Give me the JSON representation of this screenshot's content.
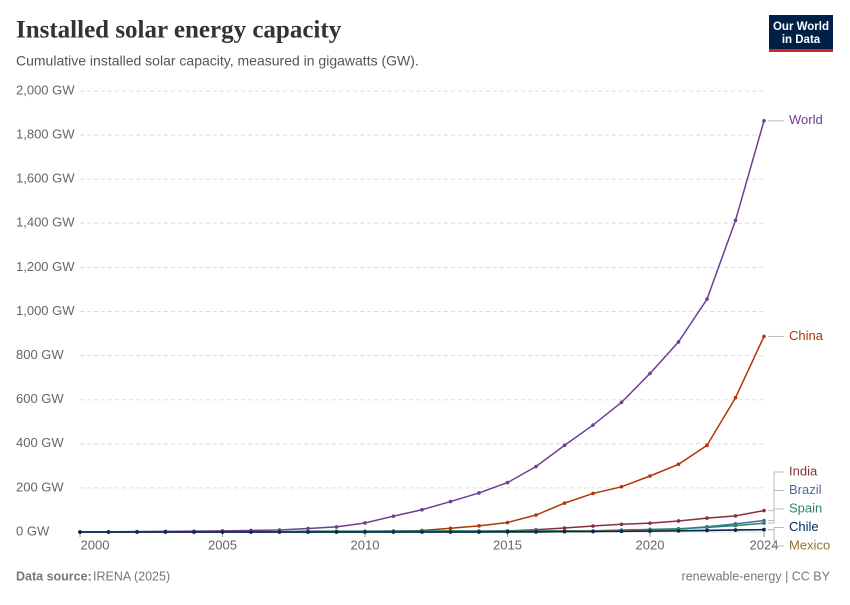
{
  "header": {
    "logo_line1": "Our World",
    "logo_line2": "in Data"
  },
  "footer": {
    "source_label": "Data source:",
    "source": "IRENA (2025)",
    "license": "renewable-energy | CC BY"
  },
  "chart_data": {
    "type": "line",
    "title": "Installed solar energy capacity",
    "subtitle": "Cumulative installed solar capacity, measured in gigawatts (GW).",
    "x": [
      2000,
      2001,
      2002,
      2003,
      2004,
      2005,
      2006,
      2007,
      2008,
      2009,
      2010,
      2011,
      2012,
      2013,
      2014,
      2015,
      2016,
      2017,
      2018,
      2019,
      2020,
      2021,
      2022,
      2023,
      2024
    ],
    "xlim": [
      2000,
      2024
    ],
    "xticks": [
      2000,
      2005,
      2010,
      2015,
      2020,
      2024
    ],
    "ylim": [
      0,
      2000
    ],
    "yticks": [
      {
        "value": 0,
        "label": "0 GW"
      },
      {
        "value": 200,
        "label": "200 GW"
      },
      {
        "value": 400,
        "label": "400 GW"
      },
      {
        "value": 600,
        "label": "600 GW"
      },
      {
        "value": 800,
        "label": "800 GW"
      },
      {
        "value": 1000,
        "label": "1,000 GW"
      },
      {
        "value": 1200,
        "label": "1,200 GW"
      },
      {
        "value": 1400,
        "label": "1,400 GW"
      },
      {
        "value": 1600,
        "label": "1,600 GW"
      },
      {
        "value": 1800,
        "label": "1,800 GW"
      },
      {
        "value": 2000,
        "label": "2,000 GW"
      }
    ],
    "grid": true,
    "series": [
      {
        "name": "World",
        "color": "#6d3e91",
        "values": [
          1,
          1,
          2,
          3,
          4,
          5,
          7,
          9,
          16,
          23,
          41,
          72,
          101,
          138,
          177,
          224,
          297,
          393,
          485,
          588,
          719,
          862,
          1056,
          1413,
          1865
        ]
      },
      {
        "name": "China",
        "color": "#b13507",
        "values": [
          0,
          0,
          0,
          0,
          0,
          0,
          0,
          0,
          0,
          0,
          1,
          3,
          7,
          17,
          28,
          43,
          77,
          131,
          175,
          205,
          254,
          307,
          393,
          609,
          887
        ]
      },
      {
        "name": "India",
        "color": "#883039",
        "values": [
          0,
          0,
          0,
          0,
          0,
          0,
          0,
          0,
          0,
          0,
          0,
          1,
          1,
          2,
          3,
          5,
          10,
          18,
          27,
          35,
          40,
          50,
          63,
          73,
          97
        ]
      },
      {
        "name": "Brazil",
        "color": "#4c6a9c",
        "values": [
          0,
          0,
          0,
          0,
          0,
          0,
          0,
          0,
          0,
          0,
          0,
          0,
          0,
          0,
          0,
          0,
          0,
          1,
          2,
          5,
          8,
          13,
          24,
          37,
          52
        ]
      },
      {
        "name": "Spain",
        "color": "#2c8465",
        "values": [
          0,
          0,
          0,
          0,
          0,
          0,
          0,
          1,
          4,
          4,
          4,
          5,
          5,
          5,
          5,
          5,
          5,
          5,
          5,
          9,
          12,
          15,
          21,
          29,
          40
        ]
      },
      {
        "name": "Mexico",
        "color": "#996d39",
        "values": [
          0,
          0,
          0,
          0,
          0,
          0,
          0,
          0,
          0,
          0,
          0,
          0,
          0,
          0,
          0,
          0,
          0,
          1,
          3,
          5,
          6,
          7,
          8,
          9,
          10
        ]
      },
      {
        "name": "Chile",
        "color": "#00295b",
        "values": [
          0,
          0,
          0,
          0,
          0,
          0,
          0,
          0,
          0,
          0,
          0,
          0,
          0,
          0,
          0,
          1,
          1,
          2,
          2,
          3,
          4,
          5,
          7,
          9,
          11
        ]
      }
    ]
  }
}
